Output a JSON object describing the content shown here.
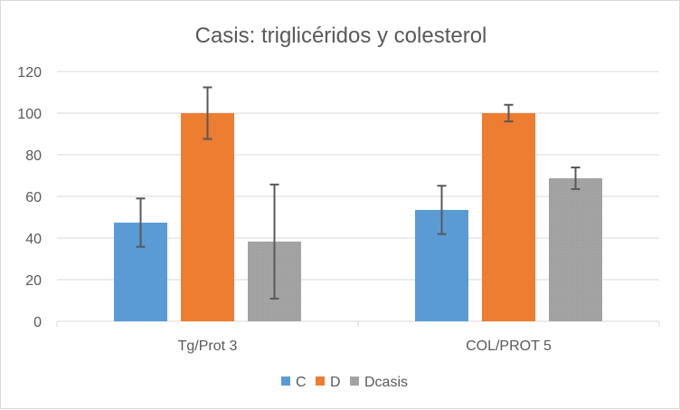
{
  "chart_data": {
    "type": "bar",
    "title": "Casis: triglicéridos y colesterol",
    "xlabel": "",
    "ylabel": "",
    "ylim": [
      0,
      120
    ],
    "yticks": [
      "0",
      "20",
      "40",
      "60",
      "80",
      "100",
      "120"
    ],
    "ytick_values": [
      0,
      20,
      40,
      60,
      80,
      100,
      120
    ],
    "grid": true,
    "legend_position": "bottom",
    "categories": [
      "Tg/Prot 3",
      "COL/PROT 5"
    ],
    "series": [
      {
        "name": "C",
        "color": "#5B9BD5",
        "values": [
          47.4,
          53.5
        ],
        "errors": [
          11.6,
          11.6
        ]
      },
      {
        "name": "D",
        "color": "#ED7D31",
        "values": [
          100,
          100
        ],
        "errors": [
          12.4,
          4
        ]
      },
      {
        "name": "Dcasis",
        "color": "#A5A5A5",
        "values": [
          38.3,
          68.7
        ],
        "errors": [
          27.4,
          5.2
        ]
      }
    ]
  }
}
